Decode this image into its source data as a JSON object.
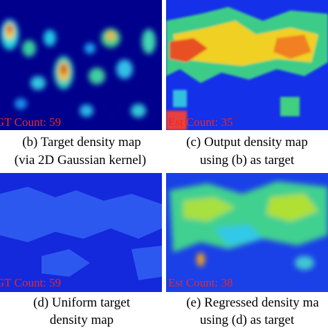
{
  "panels": [
    {
      "caption": [
        "(b) Target density map",
        "(via 2D Gaussian kernel)"
      ],
      "count_label": "GT Count: 59"
    },
    {
      "caption": [
        "(c) Output density map",
        "using (b) as target"
      ],
      "count_label": "Est Count: 35"
    },
    {
      "caption": [
        "(d) Uniform target",
        "density map"
      ],
      "count_label": "GT Count: 59"
    },
    {
      "caption": [
        "(e) Regressed density ma",
        "using (d) as target"
      ],
      "count_label": "Est Count: 38"
    }
  ]
}
